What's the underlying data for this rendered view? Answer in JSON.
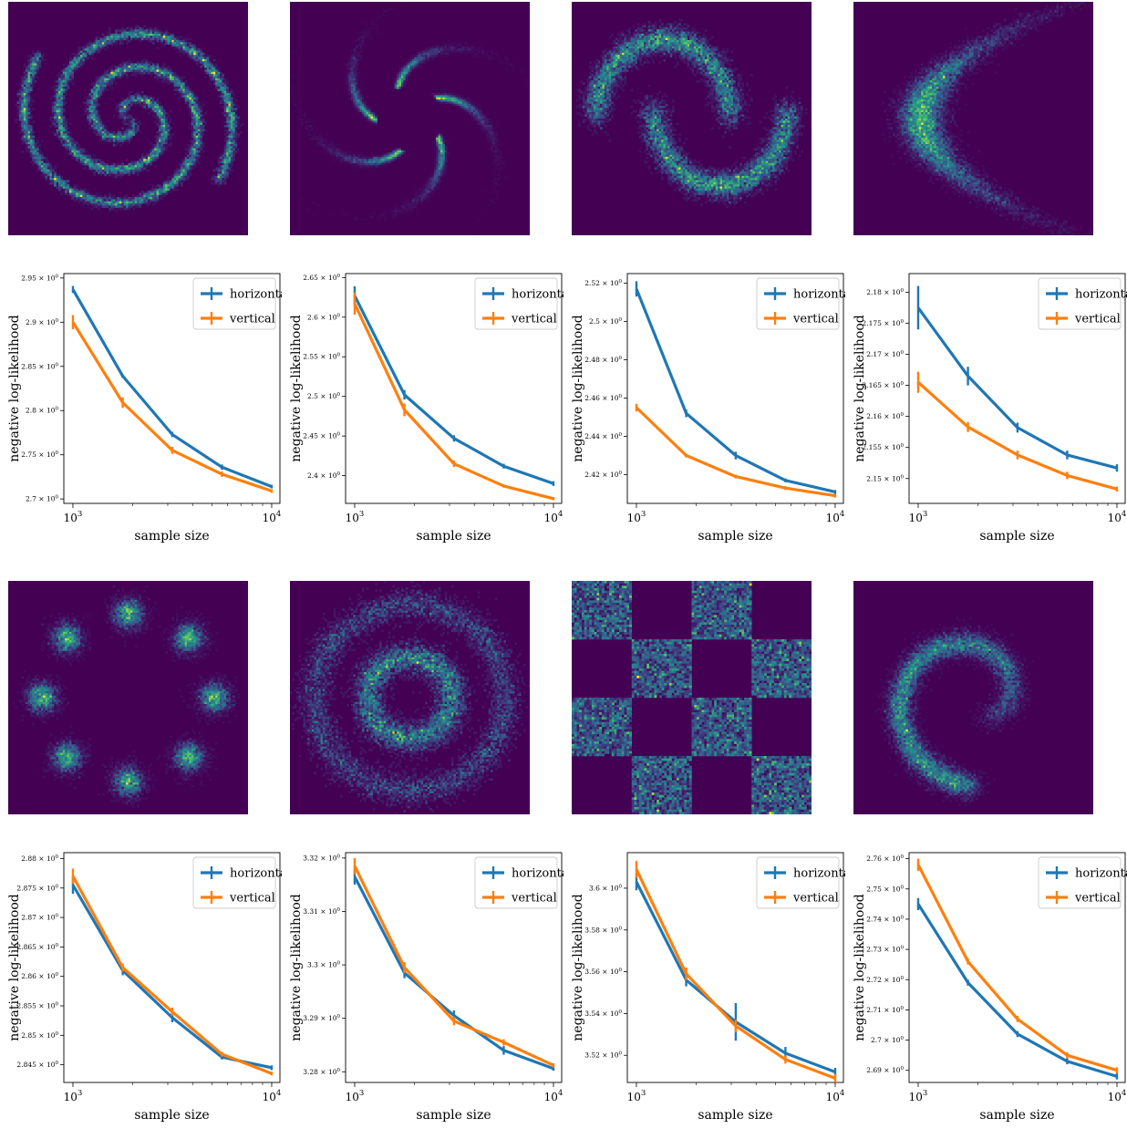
{
  "colors": {
    "horizontal": "#1f77b4",
    "vertical": "#ff7f0e",
    "background": "#440154"
  },
  "common": {
    "xlabel": "sample size",
    "ylabel": "negative log-likelihood",
    "legend": [
      "horizontal",
      "vertical"
    ],
    "x_ticks": [
      "10^3",
      "10^4"
    ]
  },
  "densities": [
    {
      "name": "two-spirals"
    },
    {
      "name": "pinwheel"
    },
    {
      "name": "two-moons"
    },
    {
      "name": "banana"
    },
    {
      "name": "eight-gaussians"
    },
    {
      "name": "two-circles"
    },
    {
      "name": "checkerboard"
    },
    {
      "name": "one-spiral"
    }
  ],
  "chart_data": [
    {
      "type": "line",
      "x": [
        1000,
        1780,
        3160,
        5620,
        10000
      ],
      "xscale": "log",
      "ylabel": "negative log-likelihood",
      "xlabel": "sample size",
      "ylim": [
        2.695,
        2.955
      ],
      "yticks": [
        "2.7 × 10^0",
        "2.75 × 10^0",
        "2.8 × 10^0",
        "2.85 × 10^0",
        "2.9 × 10^0",
        "2.95 × 10^0"
      ],
      "ytick_values": [
        2.7,
        2.75,
        2.8,
        2.85,
        2.9,
        2.95
      ],
      "legend_position": "top-right",
      "series": [
        {
          "name": "horizontal",
          "values": [
            2.937,
            2.839,
            2.773,
            2.736,
            2.714
          ],
          "errors": [
            0.004,
            0.002,
            0.003,
            0.003,
            0.002
          ]
        },
        {
          "name": "vertical",
          "values": [
            2.9,
            2.809,
            2.755,
            2.728,
            2.709
          ],
          "errors": [
            0.008,
            0.006,
            0.004,
            0.003,
            0.002
          ]
        }
      ]
    },
    {
      "type": "line",
      "x": [
        1000,
        1780,
        3160,
        5620,
        10000
      ],
      "xscale": "log",
      "ylabel": "negative log-likelihood",
      "xlabel": "sample size",
      "ylim": [
        2.365,
        2.655
      ],
      "yticks": [
        "2.4 × 10^0",
        "2.45 × 10^0",
        "2.5 × 10^0",
        "2.55 × 10^0",
        "2.6 × 10^0",
        "2.65 × 10^0"
      ],
      "ytick_values": [
        2.4,
        2.45,
        2.5,
        2.55,
        2.6,
        2.65
      ],
      "legend_position": "top-right",
      "series": [
        {
          "name": "horizontal",
          "values": [
            2.627,
            2.502,
            2.447,
            2.412,
            2.39
          ],
          "errors": [
            0.012,
            0.006,
            0.004,
            0.003,
            0.003
          ]
        },
        {
          "name": "vertical",
          "values": [
            2.617,
            2.483,
            2.415,
            2.387,
            2.371
          ],
          "errors": [
            0.014,
            0.008,
            0.004,
            0.002,
            0.002
          ]
        }
      ]
    },
    {
      "type": "line",
      "x": [
        1000,
        1780,
        3160,
        5620,
        10000
      ],
      "xscale": "log",
      "ylabel": "negative log-likelihood",
      "xlabel": "sample size",
      "ylim": [
        2.405,
        2.525
      ],
      "yticks": [
        "2.42 × 10^0",
        "2.44 × 10^0",
        "2.46 × 10^0",
        "2.48 × 10^0",
        "2.5 × 10^0",
        "2.52 × 10^0"
      ],
      "ytick_values": [
        2.42,
        2.44,
        2.46,
        2.48,
        2.5,
        2.52
      ],
      "legend_position": "top-right",
      "series": [
        {
          "name": "horizontal",
          "values": [
            2.517,
            2.452,
            2.43,
            2.417,
            2.411
          ],
          "errors": [
            0.004,
            0.002,
            0.002,
            0.001,
            0.001
          ]
        },
        {
          "name": "vertical",
          "values": [
            2.455,
            2.43,
            2.419,
            2.413,
            2.409
          ],
          "errors": [
            0.002,
            0.001,
            0.001,
            0.001,
            0.001
          ]
        }
      ]
    },
    {
      "type": "line",
      "x": [
        1000,
        1780,
        3160,
        5620,
        10000
      ],
      "xscale": "log",
      "ylabel": "negative log-likelihood",
      "xlabel": "sample size",
      "ylim": [
        2.146,
        2.183
      ],
      "yticks": [
        "2.15 × 10^0",
        "2.155 × 10^0",
        "2.16 × 10^0",
        "2.165 × 10^0",
        "2.17 × 10^0",
        "2.175 × 10^0",
        "2.18 × 10^0"
      ],
      "ytick_values": [
        2.15,
        2.155,
        2.16,
        2.165,
        2.17,
        2.175,
        2.18
      ],
      "legend_position": "top-right",
      "series": [
        {
          "name": "horizontal",
          "values": [
            2.1775,
            2.1665,
            2.1582,
            2.1538,
            2.1517
          ],
          "errors": [
            0.0035,
            0.0015,
            0.0008,
            0.0007,
            0.0006
          ]
        },
        {
          "name": "vertical",
          "values": [
            2.1655,
            2.1583,
            2.1538,
            2.1505,
            2.1483
          ],
          "errors": [
            0.0017,
            0.0008,
            0.0007,
            0.0006,
            0.0004
          ]
        }
      ]
    },
    {
      "type": "line",
      "x": [
        1000,
        1780,
        3160,
        5620,
        10000
      ],
      "xscale": "log",
      "ylabel": "negative log-likelihood",
      "xlabel": "sample size",
      "ylim": [
        2.842,
        2.881
      ],
      "yticks": [
        "2.845 × 10^0",
        "2.85 × 10^0",
        "2.855 × 10^0",
        "2.86 × 10^0",
        "2.865 × 10^0",
        "2.87 × 10^0",
        "2.875 × 10^0",
        "2.88 × 10^0"
      ],
      "ytick_values": [
        2.845,
        2.85,
        2.855,
        2.86,
        2.865,
        2.87,
        2.875,
        2.88
      ],
      "legend_position": "top-right",
      "series": [
        {
          "name": "horizontal",
          "values": [
            2.8755,
            2.861,
            2.853,
            2.8463,
            2.8445
          ],
          "errors": [
            0.0015,
            0.0008,
            0.0008,
            0.0004,
            0.0004
          ]
        },
        {
          "name": "vertical",
          "values": [
            2.877,
            2.8615,
            2.854,
            2.8468,
            2.8435
          ],
          "errors": [
            0.0013,
            0.0007,
            0.0007,
            0.0004,
            0.0003
          ]
        }
      ]
    },
    {
      "type": "line",
      "x": [
        1000,
        1780,
        3160,
        5620,
        10000
      ],
      "xscale": "log",
      "ylabel": "negative log-likelihood",
      "xlabel": "sample size",
      "ylim": [
        3.278,
        3.321
      ],
      "yticks": [
        "3.28 × 10^0",
        "3.29 × 10^0",
        "3.3 × 10^0",
        "3.31 × 10^0",
        "3.32 × 10^0"
      ],
      "ytick_values": [
        3.28,
        3.29,
        3.3,
        3.31,
        3.32
      ],
      "legend_position": "top-right",
      "series": [
        {
          "name": "horizontal",
          "values": [
            3.3165,
            3.2985,
            3.2905,
            3.284,
            3.2806
          ],
          "errors": [
            0.0015,
            0.001,
            0.001,
            0.0008,
            0.0004
          ]
        },
        {
          "name": "vertical",
          "values": [
            3.3185,
            3.2995,
            3.2895,
            3.2855,
            3.2812
          ],
          "errors": [
            0.0015,
            0.001,
            0.0008,
            0.0006,
            0.0004
          ]
        }
      ]
    },
    {
      "type": "line",
      "x": [
        1000,
        1780,
        3160,
        5620,
        10000
      ],
      "xscale": "log",
      "ylabel": "negative log-likelihood",
      "xlabel": "sample size",
      "ylim": [
        3.507,
        3.617
      ],
      "yticks": [
        "3.52 × 10^0",
        "3.54 × 10^0",
        "3.56 × 10^0",
        "3.58 × 10^0",
        "3.6 × 10^0"
      ],
      "ytick_values": [
        3.52,
        3.54,
        3.56,
        3.58,
        3.6
      ],
      "legend_position": "top-right",
      "series": [
        {
          "name": "horizontal",
          "values": [
            3.603,
            3.556,
            3.536,
            3.521,
            3.512
          ],
          "errors": [
            0.004,
            0.003,
            0.009,
            0.003,
            0.002
          ]
        },
        {
          "name": "vertical",
          "values": [
            3.609,
            3.559,
            3.534,
            3.518,
            3.509
          ],
          "errors": [
            0.004,
            0.003,
            0.003,
            0.002,
            0.002
          ]
        }
      ]
    },
    {
      "type": "line",
      "x": [
        1000,
        1780,
        3160,
        5620,
        10000
      ],
      "xscale": "log",
      "ylabel": "negative log-likelihood",
      "xlabel": "sample size",
      "ylim": [
        2.686,
        2.762
      ],
      "yticks": [
        "2.69 × 10^0",
        "2.7 × 10^0",
        "2.71 × 10^0",
        "2.72 × 10^0",
        "2.73 × 10^0",
        "2.74 × 10^0",
        "2.75 × 10^0",
        "2.76 × 10^0"
      ],
      "ytick_values": [
        2.69,
        2.7,
        2.71,
        2.72,
        2.73,
        2.74,
        2.75,
        2.76
      ],
      "legend_position": "top-right",
      "series": [
        {
          "name": "horizontal",
          "values": [
            2.745,
            2.719,
            2.702,
            2.693,
            2.688
          ],
          "errors": [
            0.002,
            0.001,
            0.001,
            0.001,
            0.001
          ]
        },
        {
          "name": "vertical",
          "values": [
            2.758,
            2.726,
            2.707,
            2.695,
            2.69
          ],
          "errors": [
            0.002,
            0.001,
            0.001,
            0.001,
            0.001
          ]
        }
      ]
    }
  ]
}
